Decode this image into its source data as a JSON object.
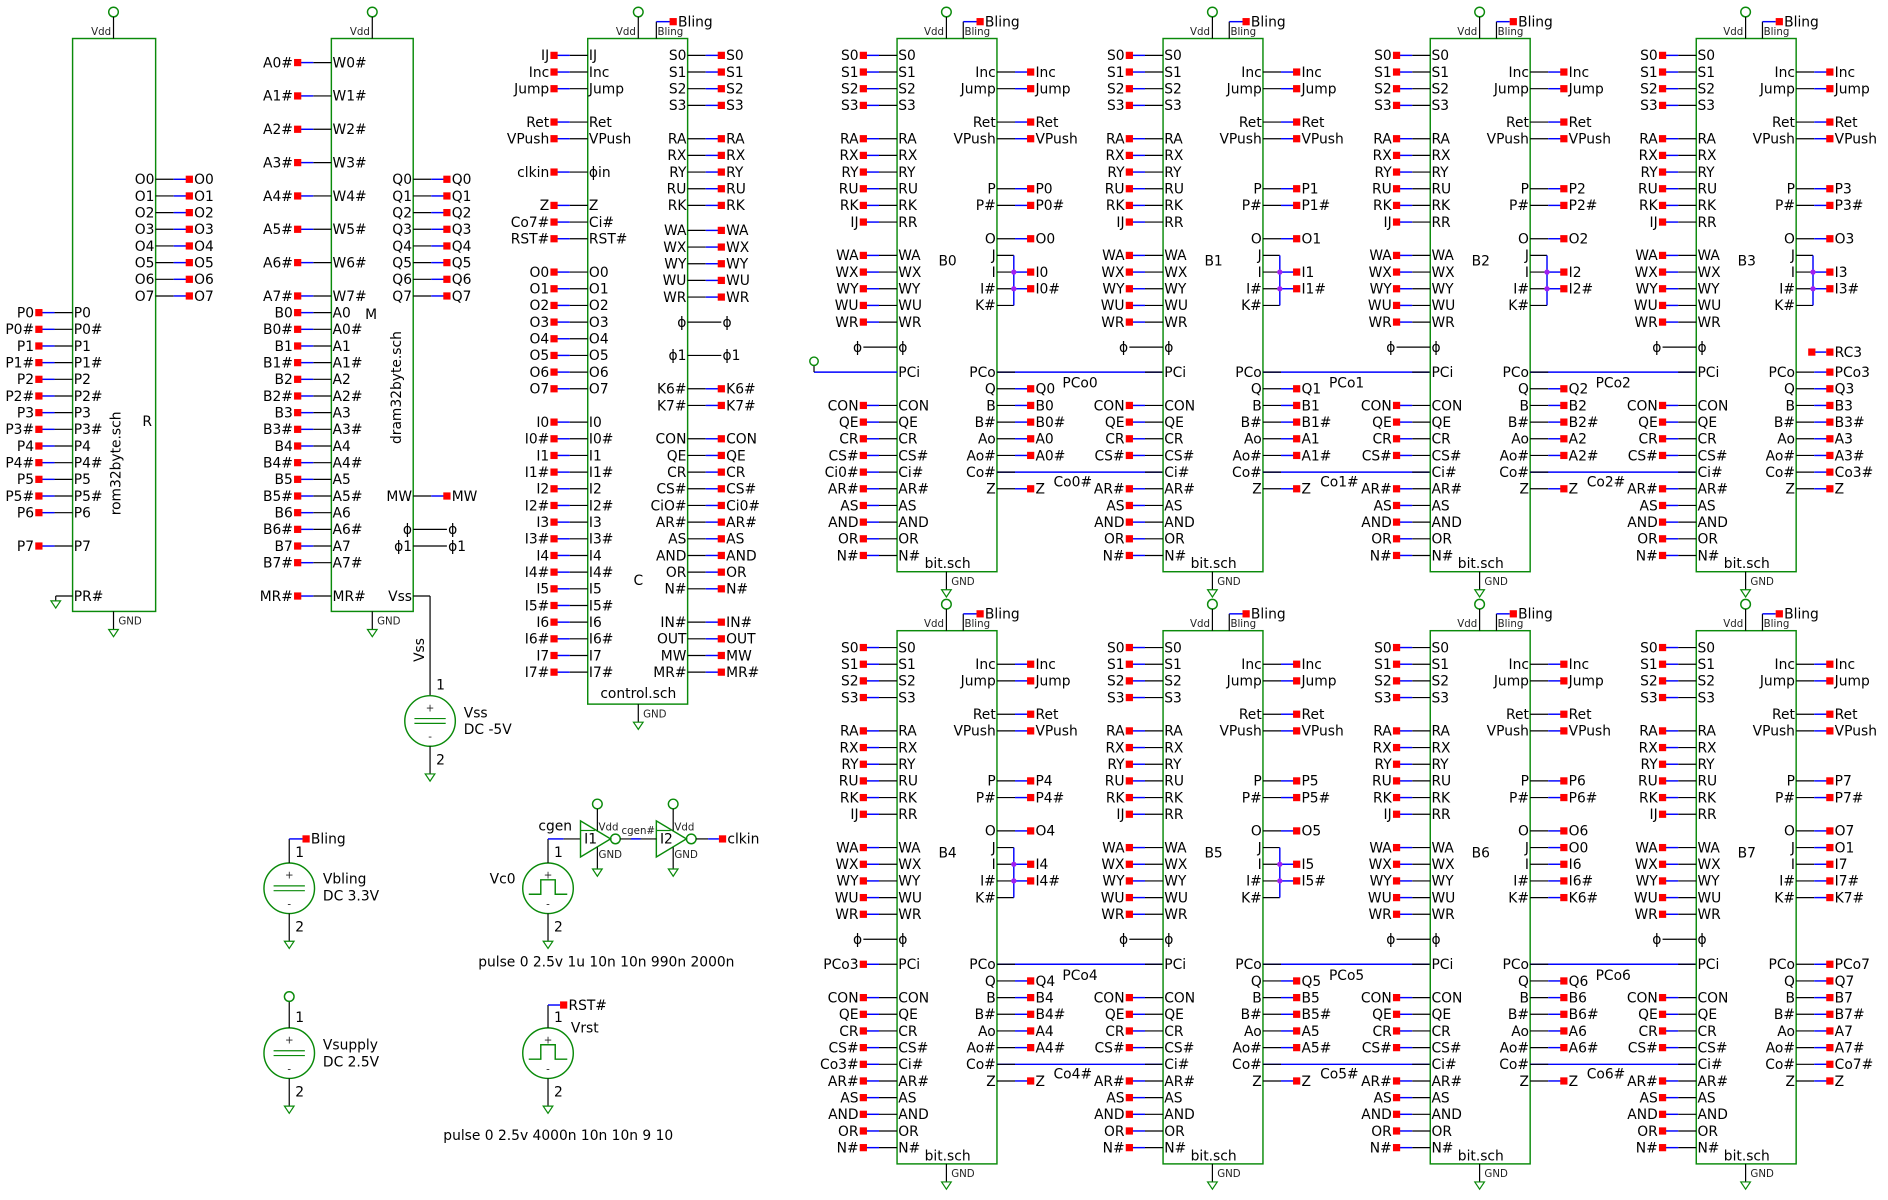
{
  "colors": {
    "wire": "#0000ff",
    "stub_wire": "#000000",
    "symbol": "#0a8a0a",
    "port": "#ff0000",
    "junction": "#a020f0",
    "background": "#ffffff"
  },
  "labels": {
    "vdd": "Vdd",
    "gnd": "GND",
    "bling": "Bling"
  },
  "rom": {
    "name": "R",
    "file": "rom32byte.sch",
    "left": [
      [
        "P0",
        "P0"
      ],
      [
        "P0#",
        "P0#"
      ],
      [
        "P1",
        "P1"
      ],
      [
        "P1#",
        "P1#"
      ],
      [
        "P2",
        "P2"
      ],
      [
        "P2#",
        "P2#"
      ],
      [
        "P3",
        "P3"
      ],
      [
        "P3#",
        "P3#"
      ],
      [
        "P4",
        "P4"
      ],
      [
        "P4#",
        "P4#"
      ],
      [
        "P5",
        "P5"
      ],
      [
        "P5#",
        "P5#"
      ],
      [
        "P6",
        "P6"
      ],
      [
        "P7",
        "P7"
      ],
      [
        "PR#",
        ""
      ]
    ],
    "right": [
      [
        "O0",
        "O0"
      ],
      [
        "O1",
        "O1"
      ],
      [
        "O2",
        "O2"
      ],
      [
        "O3",
        "O3"
      ],
      [
        "O4",
        "O4"
      ],
      [
        "O5",
        "O5"
      ],
      [
        "O6",
        "O6"
      ],
      [
        "O7",
        "O7"
      ]
    ]
  },
  "dram": {
    "name": "M",
    "file": "dram32byte.sch",
    "left": [
      [
        "W0#",
        "A0#"
      ],
      [
        "W1#",
        "A1#"
      ],
      [
        "W2#",
        "A2#"
      ],
      [
        "W3#",
        "A3#"
      ],
      [
        "W4#",
        "A4#"
      ],
      [
        "W5#",
        "A5#"
      ],
      [
        "W6#",
        "A6#"
      ],
      [
        "W7#",
        "A7#"
      ],
      [
        "A0",
        "B0"
      ],
      [
        "A0#",
        "B0#"
      ],
      [
        "A1",
        "B1"
      ],
      [
        "A1#",
        "B1#"
      ],
      [
        "A2",
        "B2"
      ],
      [
        "A2#",
        "B2#"
      ],
      [
        "A3",
        "B3"
      ],
      [
        "A3#",
        "B3#"
      ],
      [
        "A4",
        "B4"
      ],
      [
        "A4#",
        "B4#"
      ],
      [
        "A5",
        "B5"
      ],
      [
        "A5#",
        "B5#"
      ],
      [
        "A6",
        "B6"
      ],
      [
        "A6#",
        "B6#"
      ],
      [
        "A7",
        "B7"
      ],
      [
        "A7#",
        "B7#"
      ],
      [
        "MR#",
        "MR#"
      ]
    ],
    "right": [
      [
        "Q0",
        "Q0"
      ],
      [
        "Q1",
        "Q1"
      ],
      [
        "Q2",
        "Q2"
      ],
      [
        "Q3",
        "Q3"
      ],
      [
        "Q4",
        "Q4"
      ],
      [
        "Q5",
        "Q5"
      ],
      [
        "Q6",
        "Q6"
      ],
      [
        "Q7",
        "Q7"
      ],
      [
        "MW",
        "MW"
      ],
      [
        "ϕ",
        "ϕ"
      ],
      [
        "ϕ1",
        "ϕ1"
      ],
      [
        "Vss",
        "Vss"
      ]
    ]
  },
  "control": {
    "name": "C",
    "file": "control.sch",
    "left": [
      [
        "IJ",
        "IJ"
      ],
      [
        "Inc",
        "Inc"
      ],
      [
        "Jump",
        "Jump"
      ],
      [
        "Ret",
        "Ret"
      ],
      [
        "VPush",
        "VPush"
      ],
      [
        "ϕin",
        "clkin"
      ],
      [
        "Z",
        "Z"
      ],
      [
        "Ci#",
        "Co7#"
      ],
      [
        "RST#",
        "RST#"
      ],
      [
        "O0",
        "O0"
      ],
      [
        "O1",
        "O1"
      ],
      [
        "O2",
        "O2"
      ],
      [
        "O3",
        "O3"
      ],
      [
        "O4",
        "O4"
      ],
      [
        "O5",
        "O5"
      ],
      [
        "O6",
        "O6"
      ],
      [
        "O7",
        "O7"
      ],
      [
        "I0",
        "I0"
      ],
      [
        "I0#",
        "I0#"
      ],
      [
        "I1",
        "I1"
      ],
      [
        "I1#",
        "I1#"
      ],
      [
        "I2",
        "I2"
      ],
      [
        "I2#",
        "I2#"
      ],
      [
        "I3",
        "I3"
      ],
      [
        "I3#",
        "I3#"
      ],
      [
        "I4",
        "I4"
      ],
      [
        "I4#",
        "I4#"
      ],
      [
        "I5",
        "I5"
      ],
      [
        "I5#",
        "I5#"
      ],
      [
        "I6",
        "I6"
      ],
      [
        "I6#",
        "I6#"
      ],
      [
        "I7",
        "I7"
      ],
      [
        "I7#",
        "I7#"
      ]
    ],
    "right": [
      [
        "S0",
        "S0"
      ],
      [
        "S1",
        "S1"
      ],
      [
        "S2",
        "S2"
      ],
      [
        "S3",
        "S3"
      ],
      [
        "RA",
        "RA"
      ],
      [
        "RX",
        "RX"
      ],
      [
        "RY",
        "RY"
      ],
      [
        "RU",
        "RU"
      ],
      [
        "RK",
        "RK"
      ],
      [
        "WA",
        "WA"
      ],
      [
        "WX",
        "WX"
      ],
      [
        "WY",
        "WY"
      ],
      [
        "WU",
        "WU"
      ],
      [
        "WR",
        "WR"
      ],
      [
        "ϕ",
        "ϕ"
      ],
      [
        "ϕ1",
        "ϕ1"
      ],
      [
        "K6#",
        "K6#"
      ],
      [
        "K7#",
        "K7#"
      ],
      [
        "CON",
        "CON"
      ],
      [
        "QE",
        "QE"
      ],
      [
        "CR",
        "CR"
      ],
      [
        "CS#",
        "CS#"
      ],
      [
        "CiO#",
        "Ci0#"
      ],
      [
        "AR#",
        "AR#"
      ],
      [
        "AS",
        "AS"
      ],
      [
        "AND",
        "AND"
      ],
      [
        "OR",
        "OR"
      ],
      [
        "N#",
        "N#"
      ],
      [
        "IN#",
        "IN#"
      ],
      [
        "OUT",
        "OUT"
      ],
      [
        "MW",
        "MW"
      ],
      [
        "MR#",
        "MR#"
      ]
    ]
  },
  "bit_file": "bit.sch",
  "bit_left": [
    [
      "S0",
      "S0"
    ],
    [
      "S1",
      "S1"
    ],
    [
      "S2",
      "S2"
    ],
    [
      "S3",
      "S3"
    ],
    [
      "RA",
      "RA"
    ],
    [
      "RX",
      "RX"
    ],
    [
      "RY",
      "RY"
    ],
    [
      "RU",
      "RU"
    ],
    [
      "RK",
      "RK"
    ],
    [
      "RR",
      "IJ"
    ],
    [
      "WA",
      "WA"
    ],
    [
      "WX",
      "WX"
    ],
    [
      "WY",
      "WY"
    ],
    [
      "WU",
      "WU"
    ],
    [
      "WR",
      "WR"
    ],
    [
      "ϕ",
      "ϕ"
    ],
    [
      "PCi",
      ""
    ],
    [
      "CON",
      "CON"
    ],
    [
      "QE",
      "QE"
    ],
    [
      "CR",
      "CR"
    ],
    [
      "CS#",
      "CS#"
    ],
    [
      "Ci#",
      ""
    ],
    [
      "AR#",
      "AR#"
    ],
    [
      "AS",
      "AS"
    ],
    [
      "AND",
      "AND"
    ],
    [
      "OR",
      "OR"
    ],
    [
      "N#",
      "N#"
    ]
  ],
  "bit_right_pins": [
    "Inc",
    "Jump",
    "Ret",
    "VPush",
    "P",
    "P#",
    "O",
    "J",
    "I",
    "I#",
    "K#",
    "PCo",
    "Q",
    "B",
    "B#",
    "Ao",
    "Ao#",
    "Co#",
    "Z"
  ],
  "bits": [
    {
      "label": "B0",
      "right": [
        "Inc",
        "Jump",
        "Ret",
        "VPush",
        "P0",
        "P0#",
        "O0",
        null,
        "I0",
        "I0#",
        null,
        null,
        "Q0",
        "B0",
        "B0#",
        "A0",
        "A0#",
        null,
        "Z"
      ],
      "pci": null,
      "ci": "Ci0#",
      "pco_net": "PCo0",
      "co_net": "Co0#"
    },
    {
      "label": "B1",
      "right": [
        "Inc",
        "Jump",
        "Ret",
        "VPush",
        "P1",
        "P1#",
        "O1",
        null,
        "I1",
        "I1#",
        null,
        null,
        "Q1",
        "B1",
        "B1#",
        "A1",
        "A1#",
        null,
        "Z"
      ],
      "pci": null,
      "ci": null,
      "pco_net": "PCo1",
      "co_net": "Co1#"
    },
    {
      "label": "B2",
      "right": [
        "Inc",
        "Jump",
        "Ret",
        "VPush",
        "P2",
        "P2#",
        "O2",
        null,
        "I2",
        "I2#",
        null,
        null,
        "Q2",
        "B2",
        "B2#",
        "A2",
        "A2#",
        null,
        "Z"
      ],
      "pci": null,
      "ci": null,
      "pco_net": "PCo2",
      "co_net": "Co2#"
    },
    {
      "label": "B3",
      "right": [
        "Inc",
        "Jump",
        "Ret",
        "VPush",
        "P3",
        "P3#",
        "O3",
        null,
        "I3",
        "I3#",
        null,
        "PCo3",
        "Q3",
        "B3",
        "B3#",
        "A3",
        "A3#",
        "Co3#",
        "Z"
      ],
      "pci": null,
      "ci": null,
      "pco_net": null,
      "co_net": null,
      "extra": "RC3"
    },
    {
      "label": "B4",
      "right": [
        "Inc",
        "Jump",
        "Ret",
        "VPush",
        "P4",
        "P4#",
        "O4",
        null,
        "I4",
        "I4#",
        null,
        null,
        "Q4",
        "B4",
        "B4#",
        "A4",
        "A4#",
        null,
        "Z"
      ],
      "pci": "PCo3",
      "ci": "Co3#",
      "pco_net": "PCo4",
      "co_net": "Co4#"
    },
    {
      "label": "B5",
      "right": [
        "Inc",
        "Jump",
        "Ret",
        "VPush",
        "P5",
        "P5#",
        "O5",
        null,
        "I5",
        "I5#",
        null,
        null,
        "Q5",
        "B5",
        "B5#",
        "A5",
        "A5#",
        null,
        "Z"
      ],
      "pci": null,
      "ci": null,
      "pco_net": "PCo5",
      "co_net": "Co5#"
    },
    {
      "label": "B6",
      "right": [
        "Inc",
        "Jump",
        "Ret",
        "VPush",
        "P6",
        "P6#",
        "O6",
        "O0",
        "I6",
        "I6#",
        "K6#",
        null,
        "Q6",
        "B6",
        "B6#",
        "A6",
        "A6#",
        null,
        "Z"
      ],
      "pci": null,
      "ci": null,
      "pco_net": "PCo6",
      "co_net": "Co6#"
    },
    {
      "label": "B7",
      "right": [
        "Inc",
        "Jump",
        "Ret",
        "VPush",
        "P7",
        "P7#",
        "O7",
        "O1",
        "I7",
        "I7#",
        "K7#",
        "PCo7",
        "Q7",
        "B7",
        "B7#",
        "A7",
        "A7#",
        "Co7#",
        "Z"
      ],
      "pci": null,
      "ci": null,
      "pco_net": null,
      "co_net": null
    }
  ],
  "sources": {
    "vss": {
      "name": "Vss",
      "value": "DC -5V",
      "net": "Vss",
      "pin1": "1",
      "pin2": "2"
    },
    "vbling": {
      "name": "Vbling",
      "value": "DC 3.3V",
      "net": "Bling",
      "pin1": "1",
      "pin2": "2"
    },
    "vsupply": {
      "name": "Vsupply",
      "value": "DC 2.5V",
      "pin1": "1",
      "pin2": "2"
    },
    "vc0": {
      "name": "Vc0",
      "net": "cgen",
      "pin1": "1",
      "pin2": "2",
      "spec": "pulse 0 2.5v 1u 10n 10n 990n 2000n"
    },
    "vrst": {
      "name": "Vrst",
      "net": "RST#",
      "pin1": "1",
      "pin2": "2",
      "spec": "pulse 0 2.5v 4000n 10n 10n 9 10"
    }
  },
  "inverters": [
    {
      "name": "I1"
    },
    {
      "name": "I2"
    }
  ],
  "inverter_mid_net": "cgen#",
  "inverter_out_net": "clkin"
}
